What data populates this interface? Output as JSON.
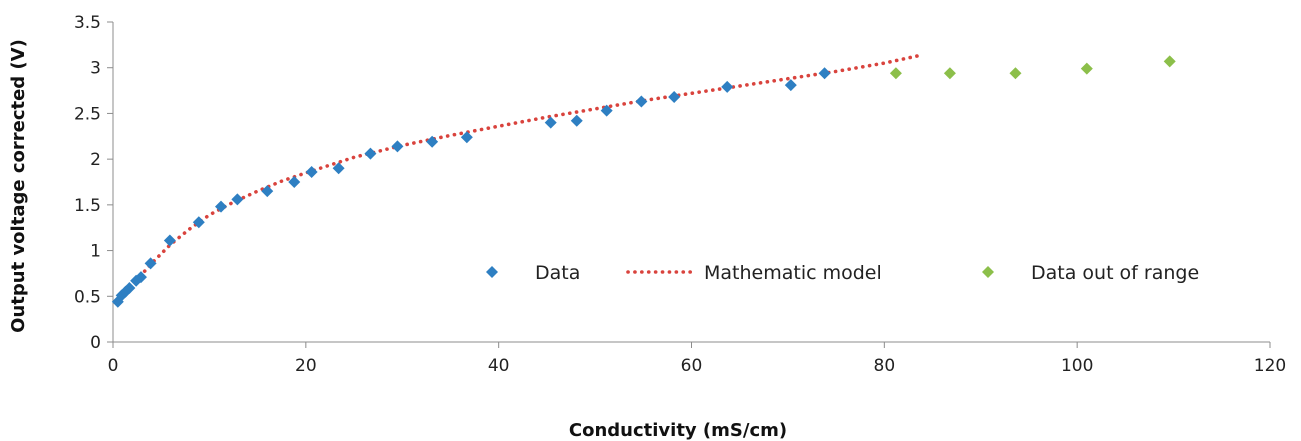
{
  "chart_data": {
    "type": "scatter",
    "title": "",
    "xlabel": "Conductivity (mS/cm)",
    "ylabel": "Output voltage corrected (V)",
    "xlim": [
      0,
      120
    ],
    "ylim": [
      0,
      3.5
    ],
    "xticks": [
      "0",
      "20",
      "40",
      "60",
      "80",
      "100",
      "120"
    ],
    "yticks": [
      "0",
      "0.5",
      "1",
      "1.5",
      "2",
      "2.5",
      "3",
      "3.5"
    ],
    "grid": false,
    "legend_position": "inside-lower-right",
    "series": [
      {
        "name": "Data",
        "kind": "marker",
        "marker": "diamond",
        "color": "#2e7fc2",
        "x": [
          0.5,
          0.9,
          1.3,
          1.7,
          2.4,
          2.9,
          3.9,
          5.9,
          8.9,
          11.2,
          12.9,
          16.0,
          18.8,
          20.6,
          23.4,
          26.7,
          29.5,
          33.1,
          36.7,
          45.4,
          48.1,
          51.2,
          54.8,
          58.2,
          63.7,
          70.3,
          73.8
        ],
        "y": [
          0.44,
          0.51,
          0.55,
          0.59,
          0.67,
          0.71,
          0.86,
          1.11,
          1.31,
          1.48,
          1.56,
          1.65,
          1.75,
          1.86,
          1.9,
          2.06,
          2.14,
          2.19,
          2.24,
          2.4,
          2.42,
          2.53,
          2.63,
          2.68,
          2.79,
          2.81,
          2.94
        ]
      },
      {
        "name": "Mathematic model",
        "kind": "dotted-line",
        "color": "#d9433d",
        "x": [
          0.5,
          1,
          2,
          3,
          4,
          6,
          8,
          10,
          12.5,
          15,
          17.5,
          20,
          25,
          30,
          35,
          40,
          45,
          50,
          55,
          60,
          65,
          70,
          75,
          80,
          83.5
        ],
        "y": [
          0.43,
          0.49,
          0.62,
          0.74,
          0.86,
          1.07,
          1.24,
          1.39,
          1.53,
          1.65,
          1.76,
          1.85,
          2.02,
          2.15,
          2.26,
          2.36,
          2.46,
          2.55,
          2.64,
          2.72,
          2.8,
          2.88,
          2.96,
          3.05,
          3.13
        ]
      },
      {
        "name": "Data out of range",
        "kind": "marker",
        "marker": "diamond",
        "color": "#8cbf4a",
        "x": [
          81.2,
          86.8,
          93.6,
          101.0,
          109.6
        ],
        "y": [
          2.94,
          2.94,
          2.94,
          2.99,
          3.07
        ]
      }
    ]
  }
}
